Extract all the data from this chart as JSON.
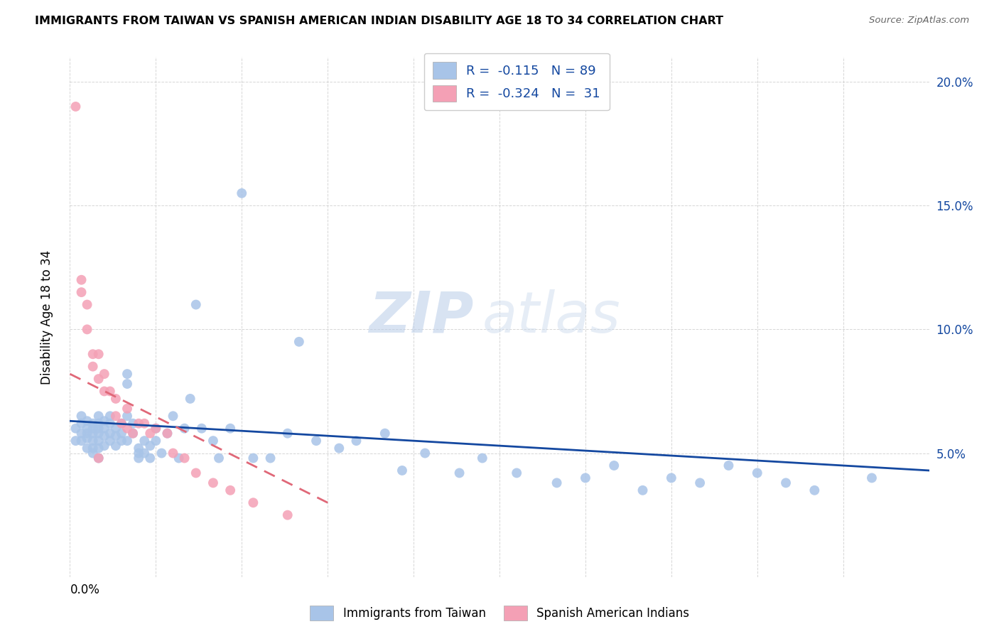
{
  "title": "IMMIGRANTS FROM TAIWAN VS SPANISH AMERICAN INDIAN DISABILITY AGE 18 TO 34 CORRELATION CHART",
  "source": "Source: ZipAtlas.com",
  "ylabel": "Disability Age 18 to 34",
  "xlim": [
    0.0,
    0.15
  ],
  "ylim": [
    0.0,
    0.21
  ],
  "taiwan_R": "-0.115",
  "taiwan_N": "89",
  "spanish_R": "-0.324",
  "spanish_N": "31",
  "taiwan_color": "#a8c4e8",
  "spanish_color": "#f4a0b5",
  "taiwan_line_color": "#1448a0",
  "spanish_line_color": "#e06878",
  "watermark_zip": "ZIP",
  "watermark_atlas": "atlas",
  "legend_taiwan": "Immigrants from Taiwan",
  "legend_spanish": "Spanish American Indians",
  "taiwan_points_x": [
    0.001,
    0.001,
    0.002,
    0.002,
    0.002,
    0.002,
    0.003,
    0.003,
    0.003,
    0.003,
    0.003,
    0.004,
    0.004,
    0.004,
    0.004,
    0.004,
    0.004,
    0.005,
    0.005,
    0.005,
    0.005,
    0.005,
    0.005,
    0.005,
    0.006,
    0.006,
    0.006,
    0.006,
    0.007,
    0.007,
    0.007,
    0.007,
    0.008,
    0.008,
    0.008,
    0.009,
    0.009,
    0.009,
    0.01,
    0.01,
    0.01,
    0.01,
    0.011,
    0.011,
    0.012,
    0.012,
    0.012,
    0.013,
    0.013,
    0.014,
    0.014,
    0.015,
    0.015,
    0.016,
    0.017,
    0.018,
    0.019,
    0.02,
    0.021,
    0.022,
    0.023,
    0.025,
    0.026,
    0.028,
    0.03,
    0.032,
    0.035,
    0.038,
    0.04,
    0.043,
    0.047,
    0.05,
    0.055,
    0.058,
    0.062,
    0.068,
    0.072,
    0.078,
    0.085,
    0.09,
    0.095,
    0.1,
    0.105,
    0.11,
    0.115,
    0.12,
    0.125,
    0.13,
    0.14
  ],
  "taiwan_points_y": [
    0.06,
    0.055,
    0.065,
    0.058,
    0.062,
    0.055,
    0.063,
    0.058,
    0.052,
    0.06,
    0.056,
    0.062,
    0.06,
    0.058,
    0.055,
    0.052,
    0.05,
    0.065,
    0.062,
    0.06,
    0.058,
    0.055,
    0.052,
    0.048,
    0.063,
    0.06,
    0.057,
    0.053,
    0.065,
    0.062,
    0.058,
    0.055,
    0.06,
    0.057,
    0.053,
    0.062,
    0.058,
    0.055,
    0.082,
    0.078,
    0.065,
    0.055,
    0.062,
    0.058,
    0.052,
    0.05,
    0.048,
    0.055,
    0.05,
    0.053,
    0.048,
    0.06,
    0.055,
    0.05,
    0.058,
    0.065,
    0.048,
    0.06,
    0.072,
    0.11,
    0.06,
    0.055,
    0.048,
    0.06,
    0.155,
    0.048,
    0.048,
    0.058,
    0.095,
    0.055,
    0.052,
    0.055,
    0.058,
    0.043,
    0.05,
    0.042,
    0.048,
    0.042,
    0.038,
    0.04,
    0.045,
    0.035,
    0.04,
    0.038,
    0.045,
    0.042,
    0.038,
    0.035,
    0.04
  ],
  "spanish_points_x": [
    0.001,
    0.002,
    0.002,
    0.003,
    0.003,
    0.004,
    0.004,
    0.005,
    0.005,
    0.005,
    0.006,
    0.006,
    0.007,
    0.008,
    0.008,
    0.009,
    0.01,
    0.01,
    0.011,
    0.012,
    0.013,
    0.014,
    0.015,
    0.017,
    0.018,
    0.02,
    0.022,
    0.025,
    0.028,
    0.032,
    0.038
  ],
  "spanish_points_y": [
    0.19,
    0.12,
    0.115,
    0.11,
    0.1,
    0.09,
    0.085,
    0.09,
    0.08,
    0.048,
    0.082,
    0.075,
    0.075,
    0.072,
    0.065,
    0.062,
    0.068,
    0.06,
    0.058,
    0.062,
    0.062,
    0.058,
    0.06,
    0.058,
    0.05,
    0.048,
    0.042,
    0.038,
    0.035,
    0.03,
    0.025
  ],
  "taiwan_trendline_x": [
    0.0,
    0.15
  ],
  "taiwan_trendline_y": [
    0.063,
    0.043
  ],
  "spanish_trendline_x": [
    0.0,
    0.045
  ],
  "spanish_trendline_y": [
    0.082,
    0.03
  ]
}
